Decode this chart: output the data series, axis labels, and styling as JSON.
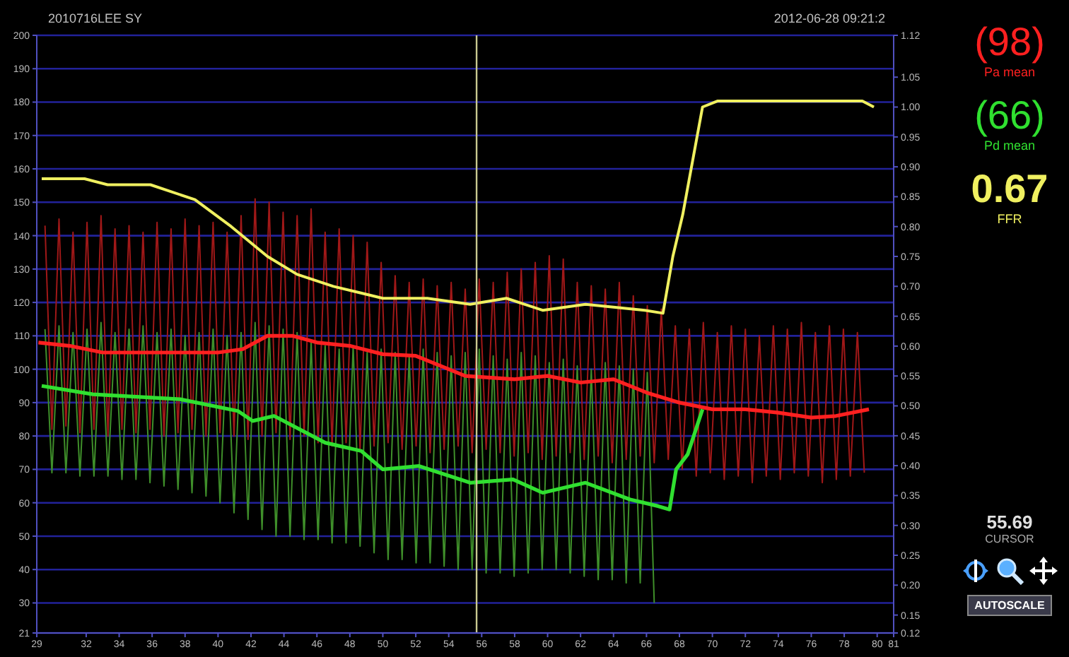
{
  "chart_data": {
    "type": "line",
    "title": "2010716LEE   SY",
    "subtitle": "2012-06-28 09:21:2",
    "xlim": [
      29,
      81
    ],
    "xticks": [
      29,
      32,
      34,
      36,
      38,
      40,
      42,
      44,
      46,
      48,
      50,
      52,
      54,
      56,
      58,
      60,
      62,
      64,
      66,
      68,
      70,
      72,
      74,
      76,
      78,
      80,
      81
    ],
    "ylim": [
      21,
      200
    ],
    "yticks": [
      21,
      30,
      40,
      50,
      60,
      70,
      80,
      90,
      100,
      110,
      120,
      130,
      140,
      150,
      160,
      170,
      180,
      190,
      200
    ],
    "y2lim": [
      0.12,
      1.12
    ],
    "y2ticks": [
      0.12,
      0.15,
      {
        "value": 0.2,
        "label": "0.20"
      },
      0.25,
      {
        "value": 0.3,
        "label": "0.30"
      },
      0.35,
      {
        "value": 0.4,
        "label": "0.40"
      },
      0.45,
      {
        "value": 0.5,
        "label": "0.50"
      },
      0.55,
      {
        "value": 0.6,
        "label": "0.60"
      },
      0.65,
      {
        "value": 0.7,
        "label": "0.70"
      },
      0.75,
      {
        "value": 0.8,
        "label": "0.80"
      },
      0.85,
      {
        "value": 0.9,
        "label": "0.90"
      },
      0.95,
      {
        "value": 1.0,
        "label": "1.00"
      },
      1.05,
      1.12
    ],
    "grid": "y",
    "legend": "right",
    "line_style": "solid",
    "ref_lines": [
      {
        "axis": "x",
        "value": 55.69,
        "color": "#c8c890"
      }
    ],
    "annotations": [
      "(98)",
      "(66)",
      "0.67",
      "55.69",
      "CURSOR",
      "AUTOSCALE"
    ],
    "series": [
      {
        "color": "#a01818",
        "x": [
          29.5,
          29.92,
          30.35,
          30.77,
          31.2,
          31.62,
          32.05,
          32.47,
          32.9,
          33.32,
          33.75,
          34.17,
          34.6,
          35.02,
          35.45,
          35.87,
          36.3,
          36.72,
          37.15,
          37.57,
          38.0,
          38.42,
          38.85,
          39.27,
          39.7,
          40.12,
          40.55,
          40.97,
          41.4,
          41.82,
          42.25,
          42.67,
          43.1,
          43.52,
          43.95,
          44.37,
          44.8,
          45.22,
          45.65,
          46.07,
          46.5,
          46.92,
          47.35,
          47.77,
          48.2,
          48.62,
          49.05,
          49.47,
          49.9,
          50.32,
          50.75,
          51.17,
          51.6,
          52.02,
          52.45,
          52.87,
          53.3,
          53.72,
          54.15,
          54.57,
          55.0,
          55.42,
          55.85,
          56.27,
          56.7,
          57.12,
          57.55,
          57.97,
          58.4,
          58.82,
          59.25,
          59.67,
          60.1,
          60.52,
          60.95,
          61.37,
          61.8,
          62.22,
          62.65,
          63.07,
          63.5,
          63.92,
          64.35,
          64.77,
          65.2,
          65.62,
          66.05,
          66.47,
          66.9,
          67.32,
          67.75,
          68.17,
          68.6,
          69.02,
          69.45,
          69.87,
          70.3,
          70.72,
          71.15,
          71.57,
          72.0,
          72.42,
          72.85,
          73.27,
          73.7,
          74.12,
          74.55,
          74.97,
          75.4,
          75.82,
          76.25,
          76.67,
          77.1,
          77.52,
          77.95,
          78.37,
          78.8,
          79.22
        ],
        "values": [
          143,
          82,
          145,
          83,
          141,
          81,
          144,
          82,
          146,
          80,
          142,
          82,
          143,
          81,
          141,
          82,
          144,
          80,
          142,
          81,
          145,
          82,
          143,
          80,
          144,
          81,
          141,
          80,
          146,
          79,
          151,
          80,
          150,
          81,
          147,
          79,
          146,
          80,
          148,
          78,
          141,
          77,
          142,
          78,
          140,
          76,
          138,
          77,
          132,
          78,
          128,
          76,
          126,
          77,
          127,
          75,
          125,
          76,
          126,
          77,
          124,
          75,
          127,
          76,
          126,
          75,
          129,
          74,
          130,
          75,
          132,
          73,
          134,
          74,
          133,
          75,
          126,
          73,
          125,
          74,
          124,
          72,
          126,
          73,
          122,
          74,
          119,
          72,
          118,
          73,
          113,
          70,
          112,
          68,
          114,
          69,
          111,
          67,
          113,
          68,
          112,
          66,
          110,
          68,
          113,
          67,
          112,
          69,
          114,
          68,
          111,
          66,
          113,
          67,
          112,
          68,
          111,
          69
        ]
      },
      {
        "color": "#3f8f2a",
        "x": [
          29.5,
          29.92,
          30.35,
          30.77,
          31.2,
          31.62,
          32.05,
          32.47,
          32.9,
          33.32,
          33.75,
          34.17,
          34.6,
          35.02,
          35.45,
          35.87,
          36.3,
          36.72,
          37.15,
          37.57,
          38.0,
          38.42,
          38.85,
          39.27,
          39.7,
          40.12,
          40.55,
          40.97,
          41.4,
          41.82,
          42.25,
          42.67,
          43.1,
          43.52,
          43.95,
          44.37,
          44.8,
          45.22,
          45.65,
          46.07,
          46.5,
          46.92,
          47.35,
          47.77,
          48.2,
          48.62,
          49.05,
          49.47,
          49.9,
          50.32,
          50.75,
          51.17,
          51.6,
          52.02,
          52.45,
          52.87,
          53.3,
          53.72,
          54.15,
          54.57,
          55.0,
          55.42,
          55.85,
          56.27,
          56.7,
          57.12,
          57.55,
          57.97,
          58.4,
          58.82,
          59.25,
          59.67,
          60.1,
          60.52,
          60.95,
          61.37,
          61.8,
          62.22,
          62.65,
          63.07,
          63.5,
          63.92,
          64.35,
          64.77,
          65.2,
          65.62,
          66.05,
          66.47
        ],
        "values": [
          112,
          69,
          113,
          69,
          111,
          68,
          112,
          68,
          114,
          68,
          111,
          67,
          112,
          67,
          113,
          66,
          111,
          65,
          112,
          64,
          110,
          63,
          111,
          62,
          112,
          60,
          110,
          57,
          111,
          55,
          114,
          52,
          113,
          50,
          112,
          50,
          111,
          49,
          108,
          49,
          107,
          48,
          106,
          48,
          107,
          47,
          105,
          45,
          106,
          43,
          105,
          43,
          104,
          42,
          106,
          42,
          105,
          41,
          104,
          40,
          105,
          40,
          106,
          39,
          104,
          39,
          103,
          38,
          105,
          39,
          104,
          40,
          102,
          40,
          103,
          39,
          101,
          38,
          100,
          37,
          102,
          37,
          101,
          36,
          100,
          36,
          99,
          30
        ]
      },
      {
        "name": "Pa mean",
        "color": "#ff2020",
        "x": [
          29.1,
          31,
          33,
          38,
          40,
          41.5,
          43,
          44.5,
          46,
          48,
          50,
          52,
          53.5,
          55,
          58,
          60,
          62,
          64,
          66,
          68,
          70,
          72,
          74,
          76,
          77.5,
          79.5
        ],
        "values": [
          108,
          107,
          105,
          105,
          105,
          106,
          110,
          110,
          108,
          107,
          104.5,
          104,
          101,
          98,
          97,
          98,
          96,
          97,
          93,
          90,
          88,
          88,
          87,
          85.5,
          86,
          88
        ]
      },
      {
        "name": "Pd mean",
        "color": "#30e030",
        "x": [
          29.3,
          32.4,
          37.7,
          41.2,
          42.1,
          43.4,
          46.5,
          48.7,
          50.0,
          52.2,
          55.3,
          57.9,
          59.7,
          62.3,
          65.0,
          66.7,
          67.4,
          67.8,
          68.5,
          69.4
        ],
        "values": [
          95,
          92.5,
          91,
          87.5,
          84.5,
          86,
          78,
          75.5,
          70,
          71,
          66,
          67,
          63,
          66,
          61,
          59,
          58,
          70,
          74.5,
          88
        ]
      },
      {
        "name": "FFR",
        "axis": "y2",
        "color": "#f0f060",
        "x": [
          29.3,
          31.9,
          33.3,
          35.9,
          38.6,
          40.8,
          43.0,
          44.8,
          47.0,
          50.0,
          52.7,
          55.3,
          57.5,
          59.7,
          62.3,
          65.9,
          67.0,
          67.6,
          68.2,
          69.4,
          70.3,
          79.1,
          79.8
        ],
        "values": [
          0.88,
          0.88,
          0.87,
          0.87,
          0.845,
          0.8,
          0.75,
          0.72,
          0.7,
          0.68,
          0.68,
          0.67,
          0.68,
          0.66,
          0.67,
          0.66,
          0.655,
          0.75,
          0.82,
          1.0,
          1.01,
          1.01,
          1.0
        ]
      }
    ]
  }
}
